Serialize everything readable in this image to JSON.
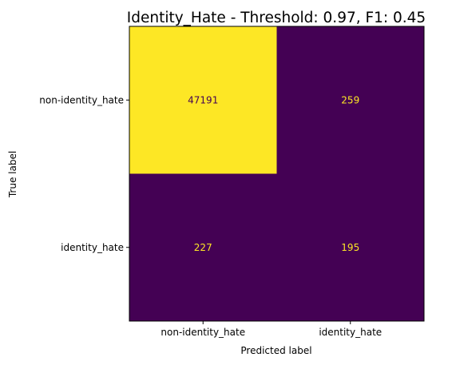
{
  "chart_data": {
    "type": "heatmap",
    "title": "Identity_Hate - Threshold: 0.97, F1: 0.45",
    "xlabel": "Predicted label",
    "ylabel": "True label",
    "x_categories": [
      "non-identity_hate",
      "identity_hate"
    ],
    "y_categories": [
      "non-identity_hate",
      "identity_hate"
    ],
    "values": [
      [
        47191,
        259
      ],
      [
        227,
        195
      ]
    ],
    "colormap": "viridis",
    "colors": {
      "high": "#fde725",
      "low": "#440154",
      "text_on_high": "#440154",
      "text_on_low": "#fde725"
    },
    "grid": false,
    "colorbar": false
  }
}
